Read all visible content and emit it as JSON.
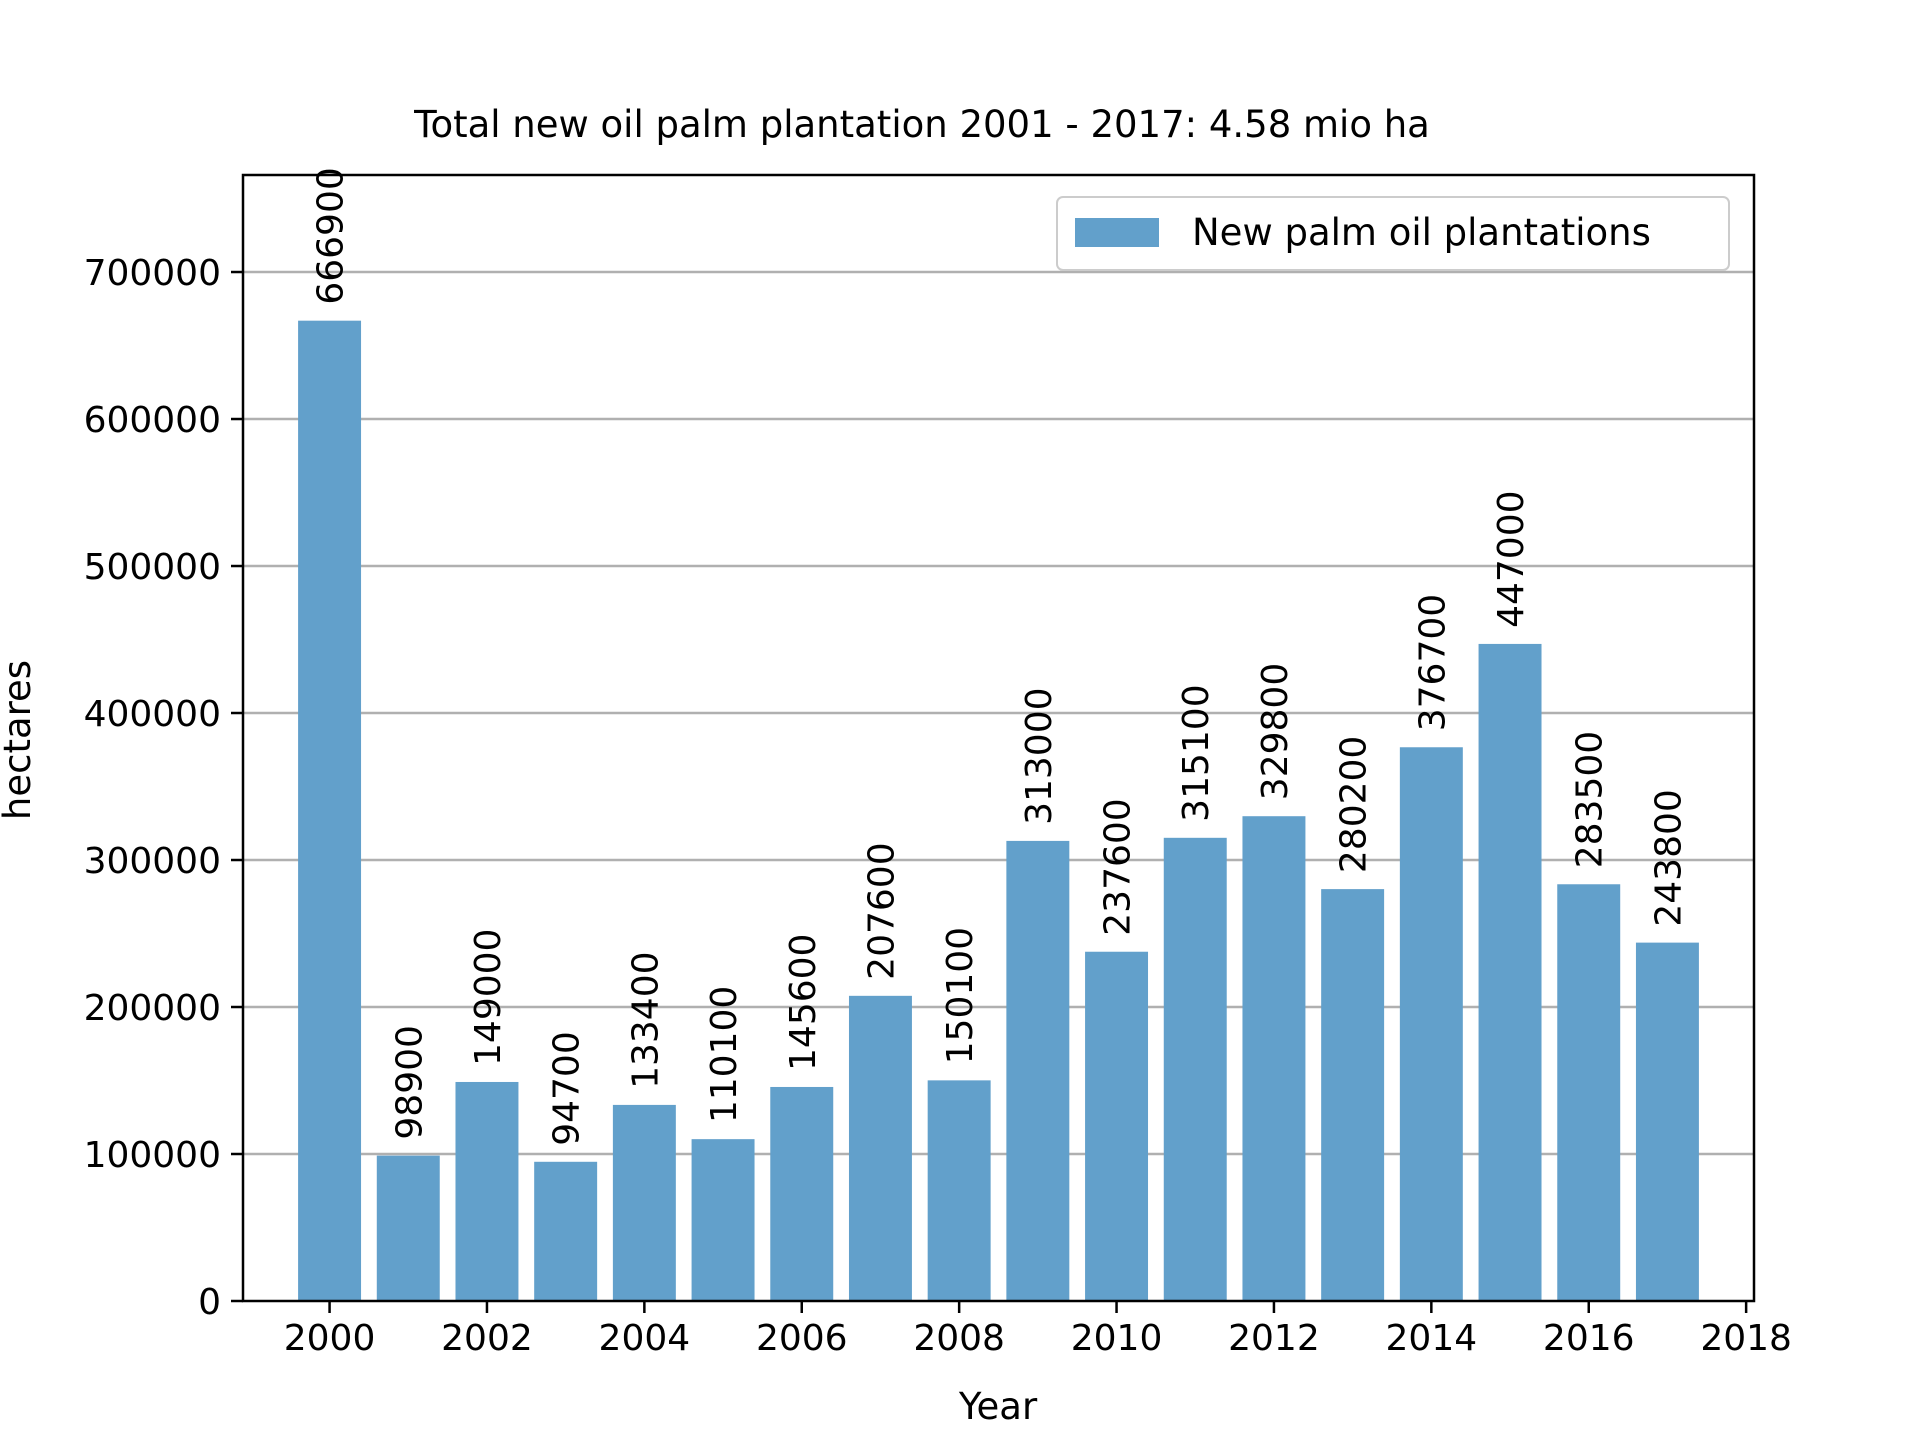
{
  "chart_data": {
    "type": "bar",
    "title": "Total new oil palm plantation 2001 - 2017: 4.58 mio ha",
    "xlabel": "Year",
    "ylabel": "hectares",
    "x": [
      2000,
      2001,
      2002,
      2003,
      2004,
      2005,
      2006,
      2007,
      2008,
      2009,
      2010,
      2011,
      2012,
      2013,
      2014,
      2015,
      2016,
      2017
    ],
    "series": [
      {
        "name": "New palm oil plantations",
        "color": "#62a0cb",
        "values": [
          666900,
          98900,
          149000,
          94700,
          133400,
          110100,
          145600,
          207600,
          150100,
          313000,
          237600,
          315100,
          329800,
          280200,
          376700,
          447000,
          283500,
          243800
        ]
      }
    ],
    "value_labels": [
      "666900",
      "98900",
      "149000",
      "94700",
      "133400",
      "110100",
      "145600",
      "207600",
      "150100",
      "313000",
      "237600",
      "315100",
      "329800",
      "280200",
      "376700",
      "447000",
      "283500",
      "243800"
    ],
    "xticks": [
      "2000",
      "2002",
      "2004",
      "2006",
      "2008",
      "2010",
      "2012",
      "2014",
      "2016",
      "2018"
    ],
    "yticks": [
      "0",
      "100000",
      "200000",
      "300000",
      "400000",
      "500000",
      "600000",
      "700000"
    ],
    "xlim": [
      1998.9,
      2018.1
    ],
    "ylim": [
      0,
      766000
    ],
    "grid": "horizontal",
    "legend_position": "top-right"
  }
}
